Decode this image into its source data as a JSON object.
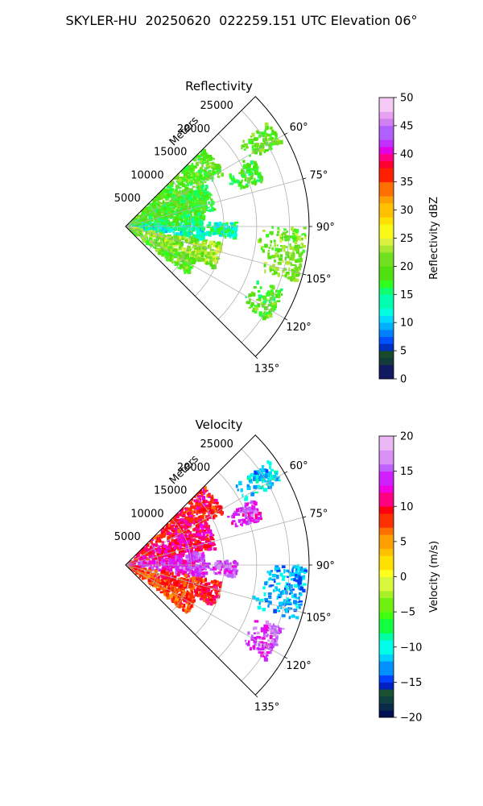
{
  "suptitle": "SKYLER-HU  20250620  022259.151 UTC Elevation 06°",
  "colors": {
    "grid": "#b0b0b0",
    "axis": "#000000"
  },
  "chart_data": [
    {
      "type": "polar-sector-heatmap",
      "title": "Reflectivity",
      "r_axis_label": "Meters",
      "r_ticks": [
        5000,
        10000,
        15000,
        20000,
        25000
      ],
      "r_tick_labels": [
        "5000",
        "10000",
        "15000",
        "20000",
        "25000"
      ],
      "r_max": 28000,
      "theta_range_deg": [
        45,
        135
      ],
      "theta_ticks_deg": [
        60,
        75,
        90,
        105,
        120,
        135
      ],
      "theta_tick_labels": [
        "60°",
        "75°",
        "90°",
        "105°",
        "120°",
        "135°"
      ],
      "grid": true,
      "colorbar": {
        "label": "Reflectivity dBZ",
        "vmin": 0,
        "vmax": 50,
        "ticks": [
          0,
          5,
          10,
          15,
          20,
          25,
          30,
          35,
          40,
          45,
          50
        ],
        "tick_labels": [
          "0",
          "5",
          "10",
          "15",
          "20",
          "25",
          "30",
          "35",
          "40",
          "45",
          "50"
        ],
        "colormap": "pyart_HomeyerRainbow (stepped)"
      },
      "echo_regions": [
        {
          "theta": [
            45,
            62
          ],
          "r": [
            0,
            17000
          ],
          "value": 19
        },
        {
          "theta": [
            62,
            80
          ],
          "r": [
            0,
            14000
          ],
          "value": 18
        },
        {
          "theta": [
            80,
            90
          ],
          "r": [
            0,
            12000
          ],
          "value": 16
        },
        {
          "theta": [
            90,
            100
          ],
          "r": [
            0,
            12000
          ],
          "value": 13
        },
        {
          "theta": [
            100,
            115
          ],
          "r": [
            0,
            15000
          ],
          "value": 22
        },
        {
          "theta": [
            115,
            128
          ],
          "r": [
            0,
            12000
          ],
          "value": 20
        },
        {
          "theta": [
            54,
            62
          ],
          "r": [
            20000,
            27000
          ],
          "value": 20
        },
        {
          "theta": [
            63,
            72
          ],
          "r": [
            17000,
            22000
          ],
          "value": 18
        },
        {
          "theta": [
            90,
            108
          ],
          "r": [
            20000,
            27500
          ],
          "value": 21
        },
        {
          "theta": [
            112,
            124
          ],
          "r": [
            21000,
            26000
          ],
          "value": 19
        },
        {
          "theta": [
            88,
            96
          ],
          "r": [
            11000,
            17000
          ],
          "value": 14
        }
      ]
    },
    {
      "type": "polar-sector-heatmap",
      "title": "Velocity",
      "r_axis_label": "Meters",
      "r_ticks": [
        5000,
        10000,
        15000,
        20000,
        25000
      ],
      "r_tick_labels": [
        "5000",
        "10000",
        "15000",
        "20000",
        "25000"
      ],
      "r_max": 28000,
      "theta_range_deg": [
        45,
        135
      ],
      "theta_ticks_deg": [
        60,
        75,
        90,
        105,
        120,
        135
      ],
      "theta_tick_labels": [
        "60°",
        "75°",
        "90°",
        "105°",
        "120°",
        "135°"
      ],
      "grid": true,
      "colorbar": {
        "label": "Velocity (m/s)",
        "vmin": -20,
        "vmax": 20,
        "ticks": [
          -20,
          -15,
          -10,
          -5,
          0,
          5,
          10,
          15,
          20
        ],
        "tick_labels": [
          "−20",
          "−15",
          "−10",
          "−5",
          "0",
          "5",
          "10",
          "15",
          "20"
        ],
        "colormap": "pyart_BuDRd18 (stepped)"
      },
      "echo_regions": [
        {
          "theta": [
            45,
            62
          ],
          "r": [
            0,
            17000
          ],
          "value": 10
        },
        {
          "theta": [
            62,
            80
          ],
          "r": [
            0,
            14000
          ],
          "value": 11
        },
        {
          "theta": [
            80,
            100
          ],
          "r": [
            0,
            12000
          ],
          "value": 14
        },
        {
          "theta": [
            100,
            115
          ],
          "r": [
            0,
            15000
          ],
          "value": 9
        },
        {
          "theta": [
            115,
            128
          ],
          "r": [
            0,
            12000
          ],
          "value": 8
        },
        {
          "theta": [
            54,
            62
          ],
          "r": [
            20000,
            27000
          ],
          "value": -11
        },
        {
          "theta": [
            63,
            72
          ],
          "r": [
            17000,
            22000
          ],
          "value": 14
        },
        {
          "theta": [
            90,
            108
          ],
          "r": [
            20000,
            27500
          ],
          "value": -12
        },
        {
          "theta": [
            112,
            124
          ],
          "r": [
            21000,
            26000
          ],
          "value": 15
        },
        {
          "theta": [
            88,
            96
          ],
          "r": [
            11000,
            17000
          ],
          "value": 15
        }
      ]
    }
  ]
}
